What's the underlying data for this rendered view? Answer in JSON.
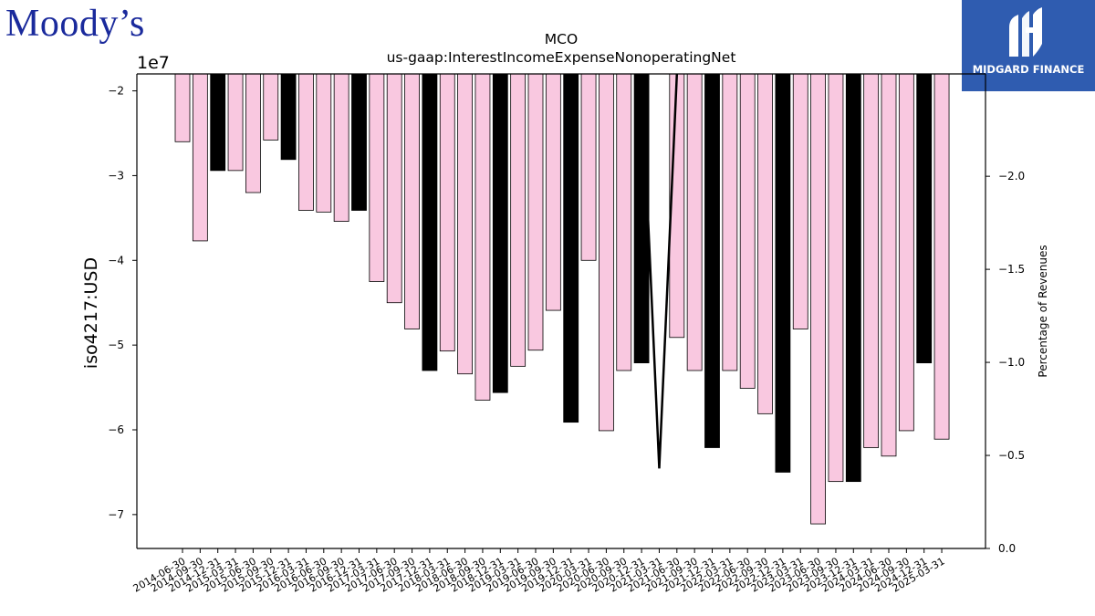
{
  "brand": {
    "left_logo": "Moody’s",
    "right_logo": "MIDGARD FINANCE",
    "right_logo_icon": "midgard-m-icon"
  },
  "chart_data": {
    "type": "bar",
    "title": "MCO",
    "subtitle": "us-gaap:InterestIncomeExpenseNonoperatingNet",
    "ylabel": "iso4217:USD",
    "y_offset_label": "1e7",
    "y2label": "Percentage of Revenues",
    "ylim": [
      -74000000,
      -18000000
    ],
    "y2lim": [
      0.0,
      -2.55
    ],
    "y_ticks": [
      "−2",
      "−3",
      "−4",
      "−5",
      "−6",
      "−7"
    ],
    "y2_ticks": [
      "−2.0",
      "−1.5",
      "−1.0",
      "−0.5",
      "0.0"
    ],
    "colors": {
      "quarter": "#f9c8e0",
      "annual": "#000000",
      "edge": "#000000"
    },
    "categories": [
      "2014-06-30",
      "2014-09-30",
      "2014-12-31",
      "2015-03-31",
      "2015-06-30",
      "2015-09-30",
      "2015-12-31",
      "2016-03-31",
      "2016-06-30",
      "2016-09-30",
      "2016-12-31",
      "2017-03-31",
      "2017-06-30",
      "2017-09-30",
      "2017-12-31",
      "2018-03-31",
      "2018-06-30",
      "2018-09-30",
      "2018-12-31",
      "2019-03-31",
      "2019-06-30",
      "2019-09-30",
      "2019-12-31",
      "2020-03-31",
      "2020-06-30",
      "2020-09-30",
      "2020-12-31",
      "2021-03-31",
      "2021-06-30",
      "2021-09-30",
      "2021-12-31",
      "2022-03-31",
      "2022-06-30",
      "2022-09-30",
      "2022-12-31",
      "2023-03-31",
      "2023-06-30",
      "2023-09-30",
      "2023-12-31",
      "2024-03-31",
      "2024-06-30",
      "2024-09-30",
      "2024-12-31",
      "2025-03-31"
    ],
    "values": [
      -26000000,
      -37700000,
      -29400000,
      -29400000,
      -32000000,
      -25800000,
      -28100000,
      -34100000,
      -34300000,
      -35400000,
      -34100000,
      -42500000,
      -45000000,
      -48100000,
      -53000000,
      -50700000,
      -53400000,
      -56500000,
      -55600000,
      -52500000,
      -50600000,
      -45900000,
      -59100000,
      -40000000,
      -60100000,
      -53000000,
      -52100000,
      -18000000,
      -49100000,
      -53000000,
      -62100000,
      -53000000,
      -55100000,
      -58100000,
      -65000000,
      -48100000,
      -71100000,
      -66100000,
      -66100000,
      -62100000,
      -63100000,
      -60100000,
      -52100000,
      -61100000
    ],
    "annual_flags": [
      false,
      false,
      true,
      false,
      false,
      false,
      true,
      false,
      false,
      false,
      true,
      false,
      false,
      false,
      true,
      false,
      false,
      false,
      true,
      false,
      false,
      false,
      true,
      false,
      false,
      false,
      true,
      false,
      false,
      false,
      true,
      false,
      false,
      false,
      true,
      false,
      false,
      false,
      true,
      false,
      false,
      false,
      true,
      false
    ],
    "line_series": {
      "name": "Percentage of Revenues",
      "x": [
        "2020-12-31",
        "2021-03-31",
        "2021-06-30"
      ],
      "values": [
        -2.55,
        -0.43,
        -2.55
      ]
    }
  }
}
